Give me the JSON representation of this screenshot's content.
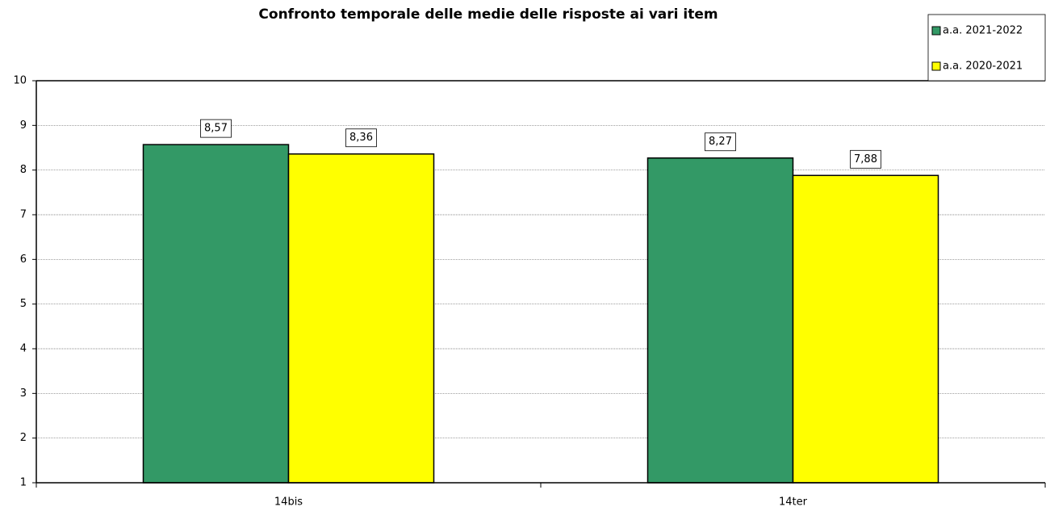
{
  "chart_data": {
    "type": "bar",
    "title": "Confronto temporale delle medie delle risposte ai vari item",
    "categories": [
      "14bis",
      "14ter"
    ],
    "series": [
      {
        "name": "a.a. 2021-2022",
        "color": "#339966",
        "values": [
          8.57,
          8.27
        ],
        "value_labels": [
          "8,57",
          "8,27"
        ]
      },
      {
        "name": "a.a. 2020-2021",
        "color": "#ffff00",
        "values": [
          8.36,
          7.88
        ],
        "value_labels": [
          "8,36",
          "7,88"
        ]
      }
    ],
    "ylim": [
      1,
      10
    ],
    "yticks": [
      1,
      2,
      3,
      4,
      5,
      6,
      7,
      8,
      9,
      10
    ],
    "grid": true,
    "legend": "top-right"
  }
}
